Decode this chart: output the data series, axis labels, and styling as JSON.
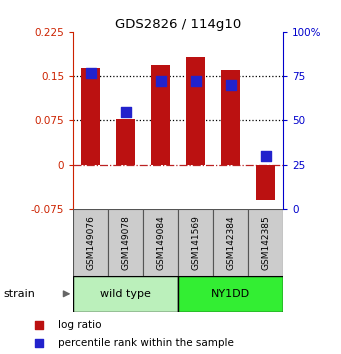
{
  "title": "GDS2826 / 114g10",
  "samples": [
    "GSM149076",
    "GSM149078",
    "GSM149084",
    "GSM141569",
    "GSM142384",
    "GSM142385"
  ],
  "log_ratios": [
    0.163,
    0.078,
    0.168,
    0.183,
    0.161,
    -0.06
  ],
  "percentile_ranks": [
    77,
    55,
    72,
    72,
    70,
    30
  ],
  "groups": [
    {
      "label": "wild type",
      "indices": [
        0,
        1,
        2
      ],
      "color": "#bbf0bb"
    },
    {
      "label": "NY1DD",
      "indices": [
        3,
        4,
        5
      ],
      "color": "#33ee33"
    }
  ],
  "bar_color": "#bb1111",
  "dot_color": "#2222cc",
  "ylim_left": [
    -0.075,
    0.225
  ],
  "ylim_right": [
    0,
    100
  ],
  "yticks_left": [
    -0.075,
    0,
    0.075,
    0.15,
    0.225
  ],
  "yticks_right": [
    0,
    25,
    50,
    75,
    100
  ],
  "hlines": [
    0.075,
    0.15
  ],
  "hline_zero_color": "#bb2222",
  "hline_dotted_color": "#000000",
  "bar_width": 0.55,
  "dot_size": 45,
  "strain_label": "strain",
  "legend_log_ratio": "log ratio",
  "legend_percentile": "percentile rank within the sample",
  "tick_color_left": "#cc2200",
  "tick_color_right": "#0000cc",
  "sample_box_color": "#cccccc",
  "sample_box_edge": "#555555"
}
